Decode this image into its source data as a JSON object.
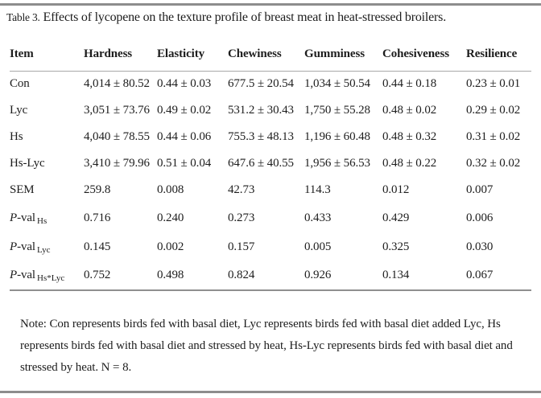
{
  "title": {
    "prefix": "Table 3.",
    "text": " Effects of lycopene on the texture profile of breast meat in heat-stressed broilers."
  },
  "table": {
    "columns": [
      "Item",
      "Hardness",
      "Elasticity",
      "Chewiness",
      "Gumminess",
      "Cohesiveness",
      "Resilience"
    ],
    "rows": [
      {
        "item": {
          "text": "Con"
        },
        "values": [
          "4,014 ± 80.52",
          "0.44 ± 0.03",
          "677.5 ± 20.54",
          "1,034 ± 50.54",
          "0.44 ± 0.18",
          "0.23 ± 0.01"
        ]
      },
      {
        "item": {
          "text": "Lyc"
        },
        "values": [
          "3,051 ± 73.76",
          "0.49 ± 0.02",
          "531.2 ± 30.43",
          "1,750 ± 55.28",
          "0.48 ± 0.02",
          "0.29 ± 0.02"
        ]
      },
      {
        "item": {
          "text": "Hs"
        },
        "values": [
          "4,040 ± 78.55",
          "0.44 ± 0.06",
          "755.3 ± 48.13",
          "1,196 ± 60.48",
          "0.48 ± 0.32",
          "0.31 ± 0.02"
        ]
      },
      {
        "item": {
          "text": "Hs-Lyc"
        },
        "values": [
          "3,410 ± 79.96",
          "0.51 ± 0.04",
          "647.6 ± 40.55",
          "1,956 ± 56.53",
          "0.48 ± 0.22",
          "0.32 ± 0.02"
        ]
      },
      {
        "item": {
          "text": "SEM"
        },
        "values": [
          "259.8",
          "0.008",
          "42.73",
          "114.3",
          "0.012",
          "0.007"
        ]
      },
      {
        "item": {
          "text": "P-val",
          "italic_first": true,
          "sub": "Hs"
        },
        "tall": true,
        "values": [
          "0.716",
          "0.240",
          "0.273",
          "0.433",
          "0.429",
          "0.006"
        ]
      },
      {
        "item": {
          "text": "P-val",
          "italic_first": true,
          "sub": "Lyc"
        },
        "tall": true,
        "values": [
          "0.145",
          "0.002",
          "0.157",
          "0.005",
          "0.325",
          "0.030"
        ]
      },
      {
        "item": {
          "text": "P-val",
          "italic_first": true,
          "sub": "Hs*Lyc"
        },
        "tall": true,
        "values": [
          "0.752",
          "0.498",
          "0.824",
          "0.926",
          "0.134",
          "0.067"
        ]
      }
    ]
  },
  "note": "Note: Con represents birds fed with basal diet, Lyc represents birds fed with basal diet added Lyc, Hs represents birds fed with basal diet and stressed by heat, Hs-Lyc represents birds fed with basal diet and stressed by heat. N = 8.",
  "colors": {
    "text": "#1d1d1d",
    "rule_heavy": "#8d8d8d",
    "rule_light": "#a9a9a9"
  }
}
